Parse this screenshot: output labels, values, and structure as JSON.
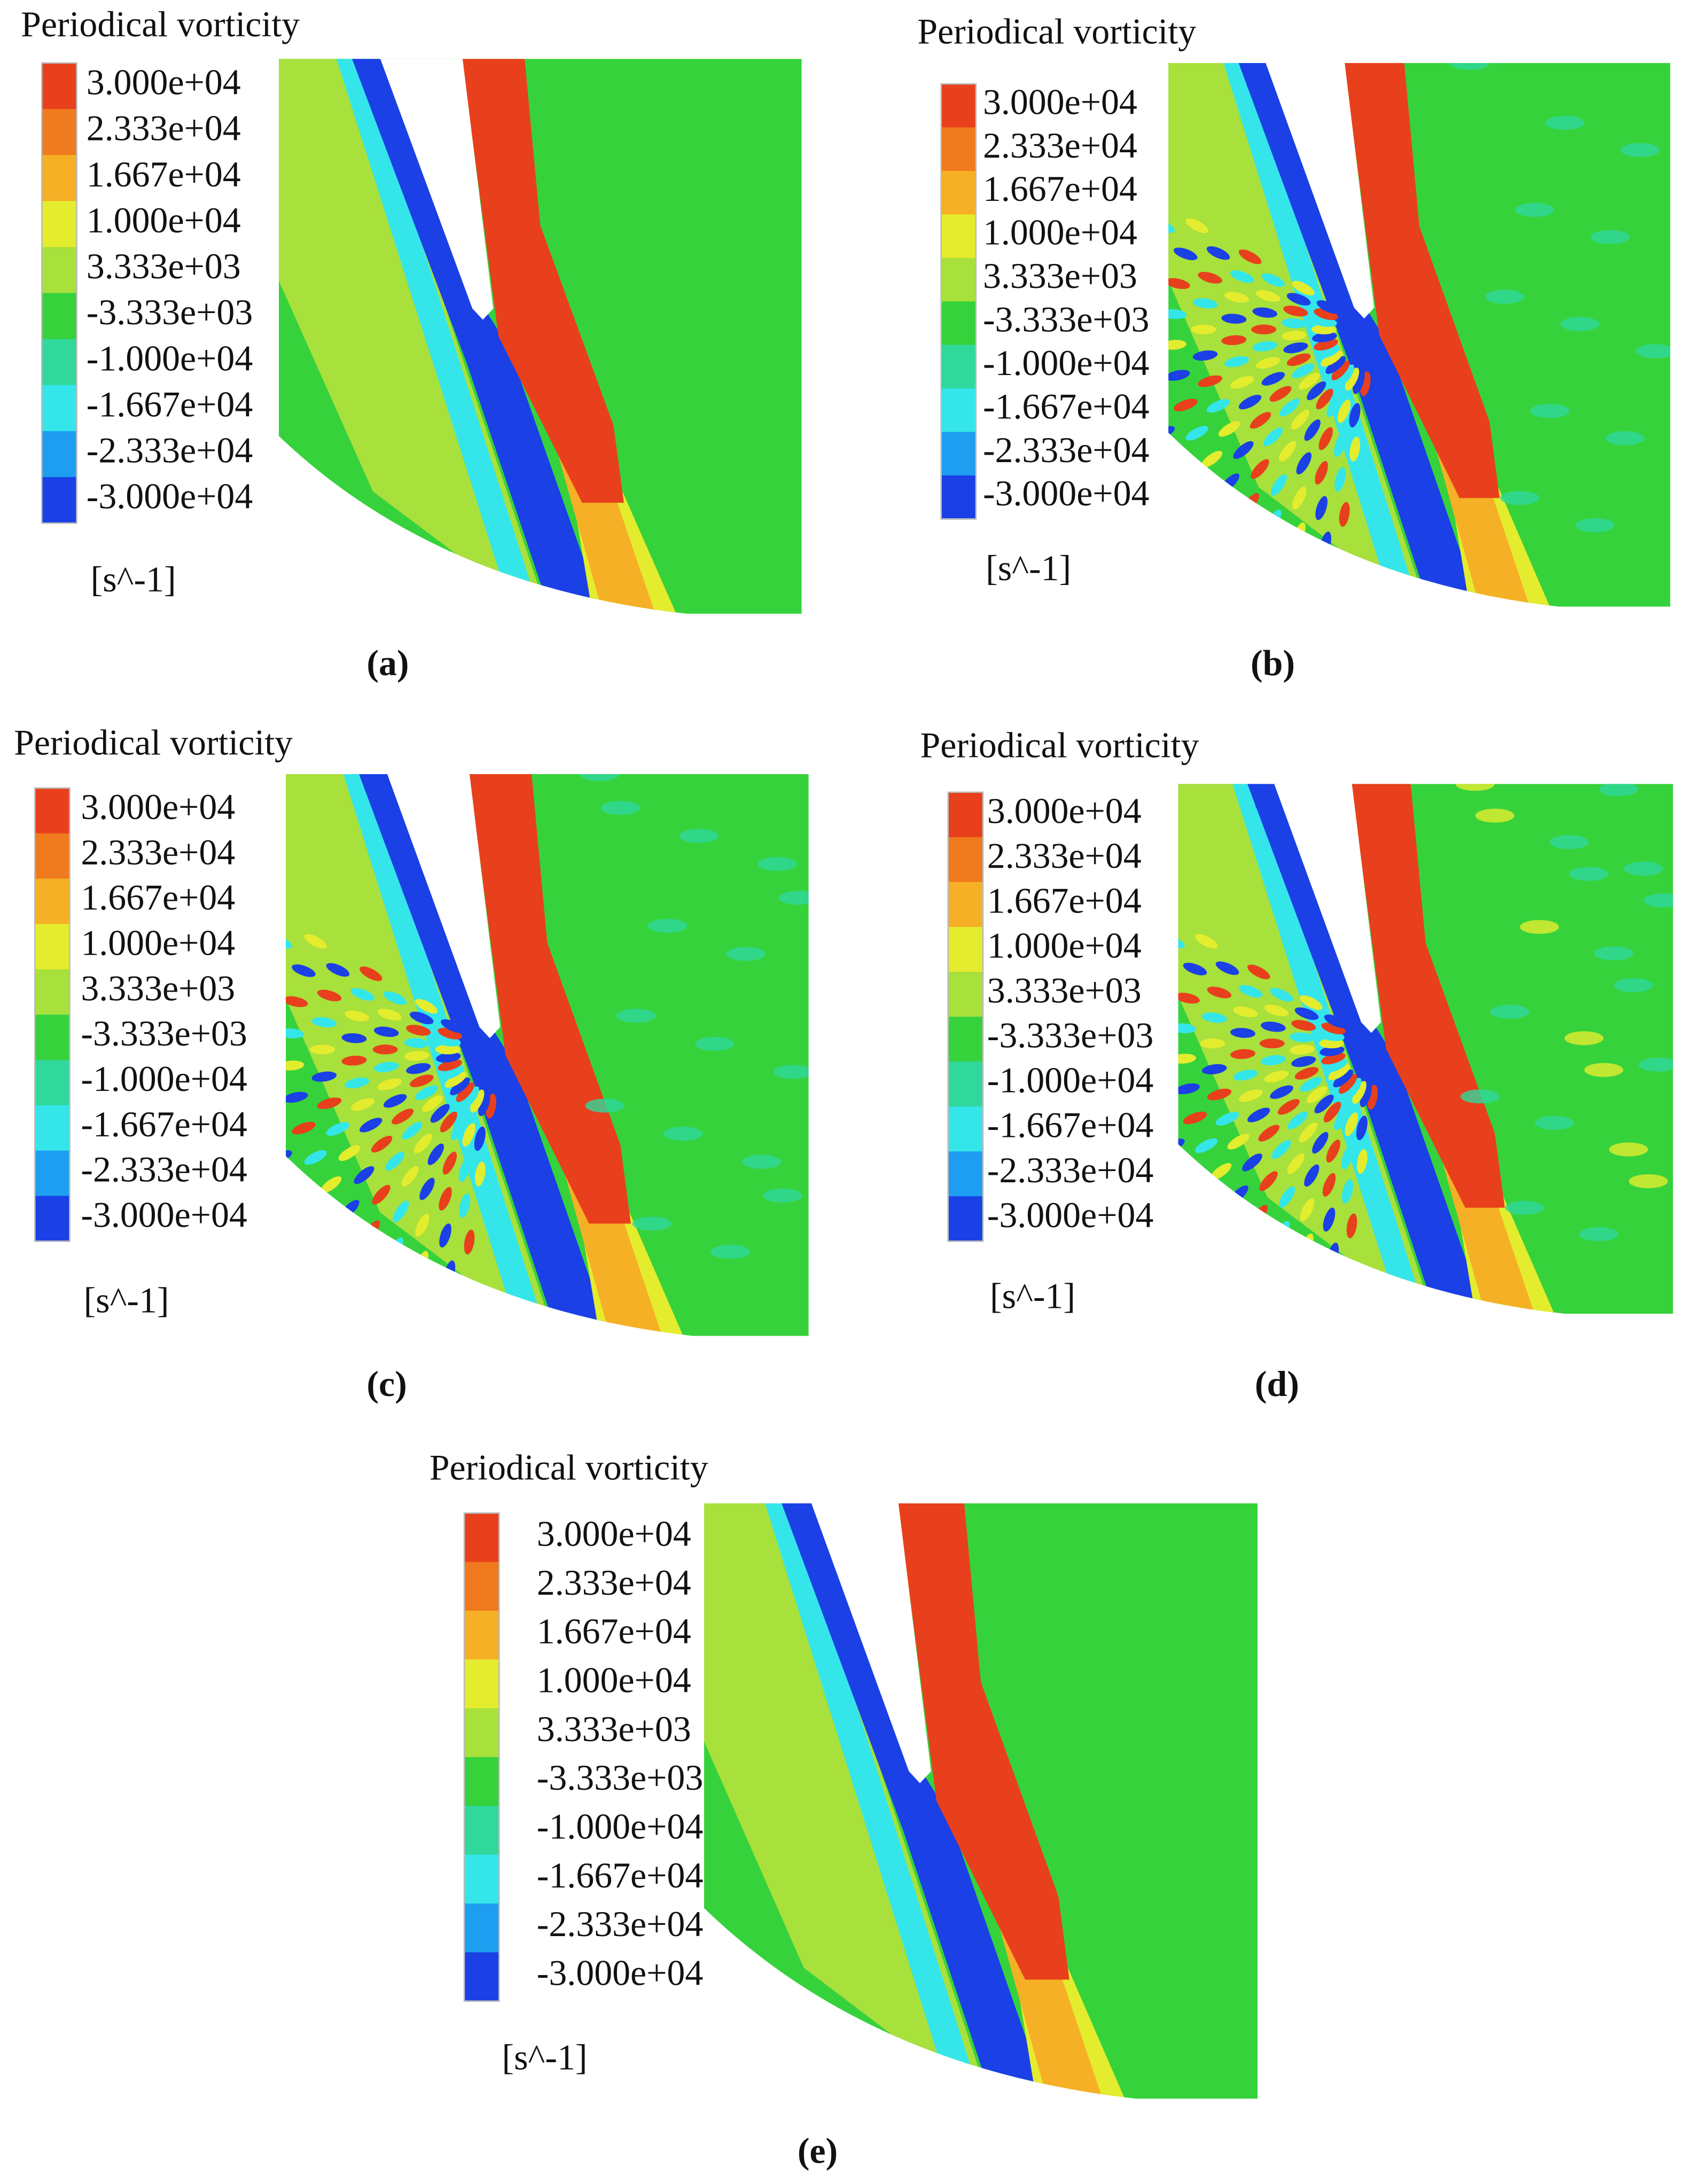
{
  "panels": [
    {
      "title": "Periodical vorticity",
      "colorbar_labels": [
        "3.000e+04",
        "2.333e+04",
        "1.667e+04",
        "1.000e+04",
        "3.333e+03",
        "-3.333e+03",
        "-1.000e+04",
        "-1.667e+04",
        "-2.333e+04",
        "-3.000e+04"
      ],
      "unit": "[s^-1]",
      "caption": "(a)"
    },
    {
      "title": "Periodical vorticity",
      "colorbar_labels": [
        "3.000e+04",
        "2.333e+04",
        "1.667e+04",
        "1.000e+04",
        "3.333e+03",
        "-3.333e+03",
        "-1.000e+04",
        "-1.667e+04",
        "-2.333e+04",
        "-3.000e+04"
      ],
      "unit": "[s^-1]",
      "caption": "(b)"
    },
    {
      "title": "Periodical vorticity",
      "colorbar_labels": [
        "3.000e+04",
        "2.333e+04",
        "1.667e+04",
        "1.000e+04",
        "3.333e+03",
        "-3.333e+03",
        "-1.000e+04",
        "-1.667e+04",
        "-2.333e+04",
        "-3.000e+04"
      ],
      "unit": "[s^-1]",
      "caption": "(c)"
    },
    {
      "title": "Periodical vorticity",
      "colorbar_labels": [
        "3.000e+04",
        "2.333e+04",
        "1.667e+04",
        "1.000e+04",
        "3.333e+03",
        "-3.333e+03",
        "-1.000e+04",
        "-1.667e+04",
        "-2.333e+04",
        "-3.000e+04"
      ],
      "unit": "[s^-1]",
      "caption": "(d)"
    },
    {
      "title": "Periodical vorticity",
      "colorbar_labels": [
        "3.000e+04",
        "2.333e+04",
        "1.667e+04",
        "1.000e+04",
        "3.333e+03",
        "-3.333e+03",
        "-1.000e+04",
        "-1.667e+04",
        "-2.333e+04",
        "-3.000e+04"
      ],
      "unit": "[s^-1]",
      "caption": "(e)"
    }
  ],
  "colorbar_colors": [
    "#e8401c",
    "#f07a1e",
    "#f5b026",
    "#e4ec2e",
    "#a8e03c",
    "#36d23c",
    "#30d89c",
    "#34e6ea",
    "#1e9ef0",
    "#1a40e6"
  ]
}
